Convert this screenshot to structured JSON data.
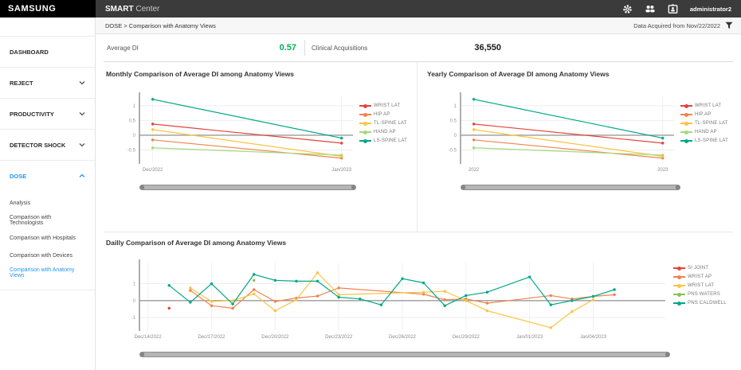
{
  "topbar": {
    "brand": "SAMSUNG",
    "app_name": "SMART",
    "app_suffix": "Center",
    "user": "administrator2",
    "icons": [
      "settings-gear",
      "users-group",
      "account-badge"
    ]
  },
  "filter_bar": {
    "breadcrumb": "DOSE > Comparison with Anatomy Views",
    "data_acquired": "Data Acquired from Nov/22/2022",
    "filter_icon": "funnel"
  },
  "sidebar": {
    "items": [
      {
        "label": "DASHBOARD",
        "chevron": "none",
        "active": false
      },
      {
        "label": "REJECT",
        "chevron": "down",
        "active": false
      },
      {
        "label": "PRODUCTIVITY",
        "chevron": "down",
        "active": false
      },
      {
        "label": "DETECTOR SHOCK",
        "chevron": "down",
        "active": false
      },
      {
        "label": "DOSE",
        "chevron": "up",
        "active": true
      }
    ],
    "dose_subitems": [
      {
        "label": "Analysis",
        "active": false
      },
      {
        "label": "Comparison with Technologists",
        "active": false
      },
      {
        "label": "Comparison with Hospitals",
        "active": false
      },
      {
        "label": "Comparison with Devices",
        "active": false
      },
      {
        "label": "Comparison with Anatomy Views",
        "active": true
      }
    ],
    "accent_color": "#2196f3"
  },
  "stats": [
    {
      "label": "Average DI",
      "value": "0.57",
      "value_color": "#00b053"
    },
    {
      "label": "Clinical Acquisitions",
      "value": "36,550",
      "value_color": "#1a1a1a"
    }
  ],
  "chart_data": [
    {
      "id": "monthly",
      "type": "line",
      "title": "Monthly Comparison of Average DI among Anatomy Views",
      "xlabel": "",
      "ylabel": "",
      "legend_position": "right",
      "grid": true,
      "xlim": [
        -0.07,
        1.06
      ],
      "ylim": [
        -0.95,
        1.35
      ],
      "x_ticks": [
        [
          0,
          "Dec/2022"
        ],
        [
          1,
          "Jan/2023"
        ]
      ],
      "y_ticks": [
        [
          1,
          "1"
        ],
        [
          0.5,
          "0.5"
        ],
        [
          0,
          "0"
        ],
        [
          -0.5,
          "-0.5"
        ]
      ],
      "series": [
        {
          "name": "WRIST LAT",
          "color": "#e0453c",
          "points": [
            [
              0,
              0.38
            ],
            [
              1,
              -0.27
            ]
          ]
        },
        {
          "name": "HIP AP",
          "color": "#f0824c",
          "points": [
            [
              0,
              -0.16
            ],
            [
              1,
              -0.78
            ]
          ]
        },
        {
          "name": "TL-SPINE LAT",
          "color": "#f9c440",
          "points": [
            [
              0,
              0.19
            ],
            [
              1,
              -0.72
            ]
          ]
        },
        {
          "name": "HAND AP",
          "color": "#a5d878",
          "points": [
            [
              0,
              -0.43
            ],
            [
              1,
              -0.68
            ]
          ]
        },
        {
          "name": "LS-SPINE LAT",
          "color": "#00a886",
          "points": [
            [
              0,
              1.22
            ],
            [
              1,
              -0.1
            ]
          ]
        }
      ]
    },
    {
      "id": "yearly",
      "type": "line",
      "title": "Yearly Comparison of Average DI among Anatomy Views",
      "xlabel": "",
      "ylabel": "",
      "legend_position": "right",
      "grid": true,
      "xlim": [
        -0.07,
        1.06
      ],
      "ylim": [
        -0.95,
        1.35
      ],
      "x_ticks": [
        [
          0,
          "2022"
        ],
        [
          1,
          "2023"
        ]
      ],
      "y_ticks": [
        [
          1,
          "1"
        ],
        [
          0.5,
          "0.5"
        ],
        [
          0,
          "0"
        ],
        [
          -0.5,
          "-0.5"
        ]
      ],
      "series": [
        {
          "name": "WRIST LAT",
          "color": "#e0453c",
          "points": [
            [
              0,
              0.38
            ],
            [
              1,
              -0.27
            ]
          ]
        },
        {
          "name": "HIP AP",
          "color": "#f0824c",
          "points": [
            [
              0,
              -0.16
            ],
            [
              1,
              -0.78
            ]
          ]
        },
        {
          "name": "TL-SPINE LAT",
          "color": "#f9c440",
          "points": [
            [
              0,
              0.19
            ],
            [
              1,
              -0.72
            ]
          ]
        },
        {
          "name": "HAND AP",
          "color": "#a5d878",
          "points": [
            [
              0,
              -0.43
            ],
            [
              1,
              -0.68
            ]
          ]
        },
        {
          "name": "LS-SPINE LAT",
          "color": "#00a886",
          "points": [
            [
              0,
              1.22
            ],
            [
              1,
              -0.1
            ]
          ]
        }
      ]
    },
    {
      "id": "daily",
      "type": "line",
      "title": "Dailly Comparison of Average DI among Anatomy Views",
      "xlabel": "",
      "ylabel": "",
      "legend_position": "right",
      "grid": true,
      "x_unit": "days after Dec/14/2022",
      "xlim": [
        -0.4,
        24.4
      ],
      "ylim": [
        -1.75,
        2.25
      ],
      "x_ticks": [
        [
          0,
          "Dec/14/2022"
        ],
        [
          3,
          "Dec/17/2022"
        ],
        [
          6,
          "Dec/20/2022"
        ],
        [
          9,
          "Dec/23/2022"
        ],
        [
          12,
          "Dec/26/2022"
        ],
        [
          15,
          "Dec/29/2022"
        ],
        [
          18,
          "Jan/01/2023"
        ],
        [
          21,
          "Jan/04/2023"
        ]
      ],
      "y_ticks": [
        [
          1,
          "1"
        ],
        [
          0,
          "0"
        ],
        [
          -1,
          "-1"
        ]
      ],
      "series": [
        {
          "name": "SI JOINT",
          "color": "#e0453c",
          "points": [
            [
              1,
              -0.45
            ]
          ]
        },
        {
          "name": "WRIST AP",
          "color": "#f0824c",
          "points": [
            [
              2,
              0.6
            ],
            [
              3,
              -0.3
            ],
            [
              4,
              -0.45
            ],
            [
              5,
              0.65
            ],
            [
              6,
              -0.05
            ],
            [
              7,
              0.15
            ],
            [
              8,
              0.27
            ],
            [
              9,
              0.75
            ],
            [
              13,
              0.38
            ],
            [
              14,
              0.05
            ],
            [
              15,
              0.1
            ],
            [
              16,
              -0.15
            ],
            [
              19,
              0.3
            ],
            [
              20,
              0.1
            ],
            [
              21,
              0.25
            ],
            [
              22,
              0.35
            ]
          ]
        },
        {
          "name": "WRIST LAT",
          "color": "#f9c440",
          "points": [
            [
              2,
              0.75
            ],
            [
              3,
              -0.05
            ],
            [
              4,
              0
            ],
            [
              5,
              0.4
            ],
            [
              6,
              -0.6
            ],
            [
              7,
              0.05
            ],
            [
              8,
              1.65
            ],
            [
              9,
              0.35
            ],
            [
              13,
              0.5
            ],
            [
              14,
              0.55
            ],
            [
              15,
              0
            ],
            [
              16,
              -0.6
            ],
            [
              19,
              -1.6
            ],
            [
              20,
              -0.65
            ],
            [
              21,
              0.05
            ]
          ]
        },
        {
          "name": "PNS WATERS",
          "color": "#8bc34a",
          "points": [
            [
              5,
              1.2
            ]
          ]
        },
        {
          "name": "PNS CALDWELL",
          "color": "#00a886",
          "points": [
            [
              1,
              0.9
            ],
            [
              2,
              -0.1
            ],
            [
              3,
              1.0
            ],
            [
              4,
              -0.2
            ],
            [
              5,
              1.55
            ],
            [
              6,
              1.2
            ],
            [
              7,
              1.15
            ],
            [
              8,
              1.15
            ],
            [
              9,
              0.2
            ],
            [
              10,
              0.1
            ],
            [
              11,
              -0.25
            ],
            [
              12,
              1.3
            ],
            [
              13,
              1.05
            ],
            [
              14,
              -0.3
            ],
            [
              15,
              0.3
            ],
            [
              16,
              0.5
            ],
            [
              18,
              1.4
            ],
            [
              19,
              -0.25
            ],
            [
              20,
              0
            ],
            [
              21,
              0.25
            ],
            [
              22,
              0.65
            ]
          ]
        }
      ]
    }
  ]
}
